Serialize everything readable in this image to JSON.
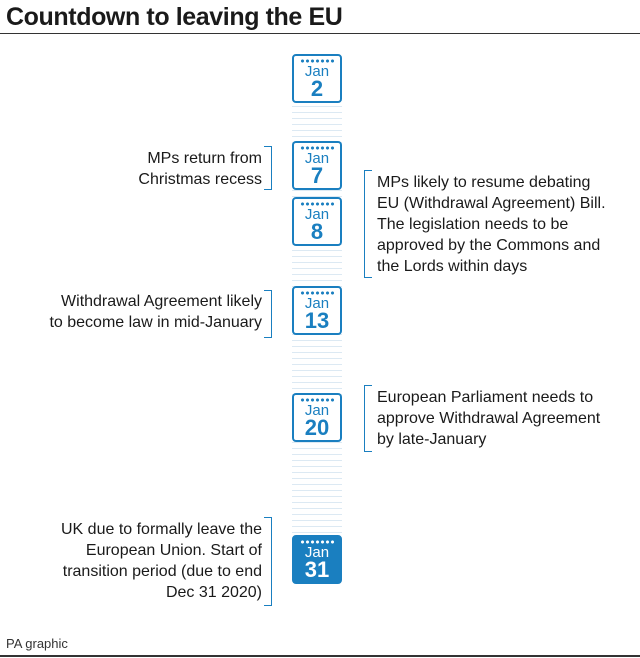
{
  "title": "Countdown to leaving the EU",
  "credit": "PA graphic",
  "colors": {
    "accent": "#1a7fc0",
    "text": "#1a1a1a"
  },
  "calendar": [
    {
      "month": "Jan",
      "day": "2",
      "highlight": false
    },
    {
      "month": "Jan",
      "day": "7",
      "highlight": false
    },
    {
      "month": "Jan",
      "day": "8",
      "highlight": false
    },
    {
      "month": "Jan",
      "day": "13",
      "highlight": false
    },
    {
      "month": "Jan",
      "day": "20",
      "highlight": false
    },
    {
      "month": "Jan",
      "day": "31",
      "highlight": true
    }
  ],
  "events": {
    "jan7": [
      "MPs return from",
      "Christmas recess"
    ],
    "jan8": [
      "MPs likely to resume debating",
      "EU (Withdrawal Agreement) Bill.",
      "The legislation needs to be",
      "approved by the Commons and",
      "the Lords within days"
    ],
    "jan13": [
      "Withdrawal Agreement likely",
      "to become law in mid-January"
    ],
    "jan20": [
      "European Parliament needs to",
      "approve Withdrawal Agreement",
      "by late-January"
    ],
    "jan31": [
      "UK due to formally leave the",
      "European Union. Start of",
      "transition period (due to end",
      "Dec 31 2020)"
    ]
  }
}
